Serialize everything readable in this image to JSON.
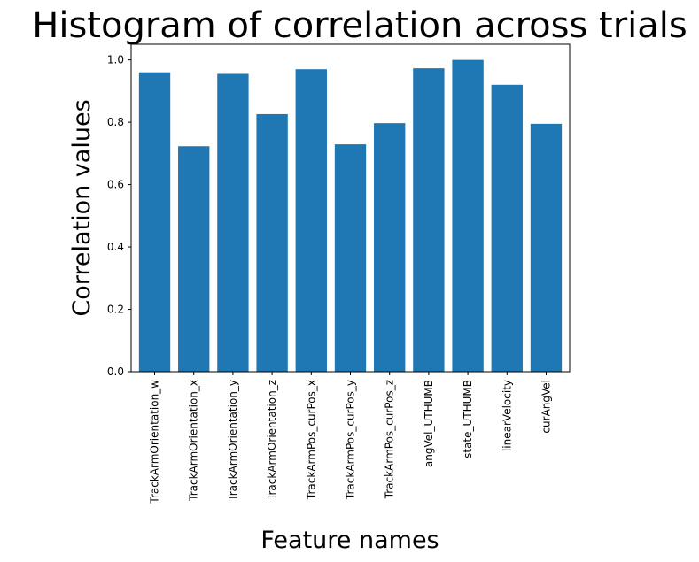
{
  "chart_data": {
    "type": "bar",
    "title": "Histogram of correlation across trials",
    "xlabel": "Feature names",
    "ylabel": "Correlation values",
    "categories": [
      "TrackArmOrientation_w",
      "TrackArmOrientation_x",
      "TrackArmOrientation_y",
      "TrackArmOrientation_z",
      "TrackArmPos_curPos_x",
      "TrackArmPos_curPos_y",
      "TrackArmPos_curPos_z",
      "angVel_UTHUMB",
      "state_UTHUMB",
      "linearVelocity",
      "curAngVel"
    ],
    "values": [
      0.96,
      0.723,
      0.955,
      0.826,
      0.97,
      0.729,
      0.797,
      0.973,
      1.0,
      0.92,
      0.795
    ],
    "ylim": [
      0,
      1.05
    ],
    "yticks": [
      "0.0",
      "0.2",
      "0.4",
      "0.6",
      "0.8",
      "1.0"
    ],
    "bar_color": "#1f77b4",
    "grid": false,
    "legend": "none"
  }
}
